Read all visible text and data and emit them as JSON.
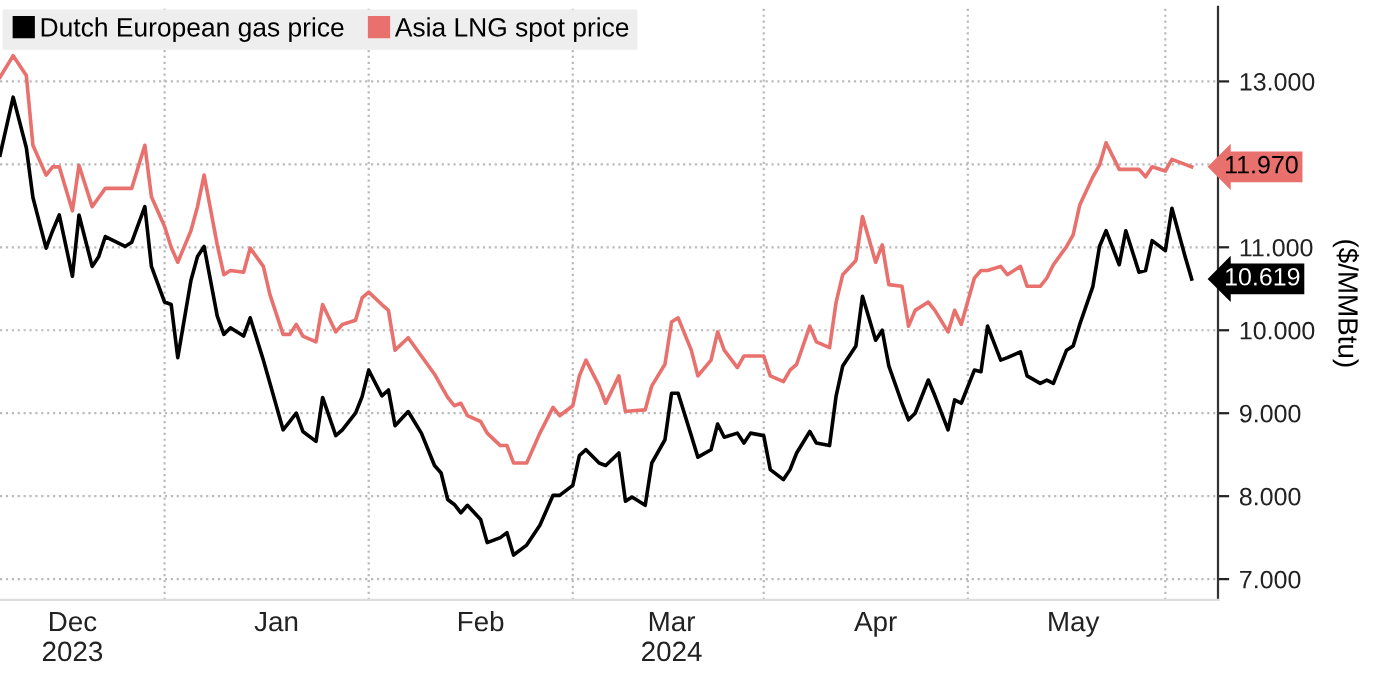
{
  "chart_data": {
    "type": "line",
    "ylabel": "($/MMBtu)",
    "legend": "top left",
    "grid": true,
    "line_style": "solid",
    "marker": "none",
    "x": [
      "2023-11-20",
      "2023-11-22",
      "2023-11-24",
      "2023-11-25",
      "2023-11-27",
      "2023-11-28",
      "2023-11-29",
      "2023-12-01",
      "2023-12-02",
      "2023-12-04",
      "2023-12-05",
      "2023-12-06",
      "2023-12-09",
      "2023-12-10",
      "2023-12-12",
      "2023-12-13",
      "2023-12-15",
      "2023-12-16",
      "2023-12-17",
      "2023-12-19",
      "2023-12-20",
      "2023-12-21",
      "2023-12-23",
      "2023-12-24",
      "2023-12-25",
      "2023-12-27",
      "2023-12-28",
      "2023-12-30",
      "2023-12-31",
      "2024-01-02",
      "2024-01-03",
      "2024-01-04",
      "2024-01-05",
      "2024-01-07",
      "2024-01-08",
      "2024-01-10",
      "2024-01-11",
      "2024-01-13",
      "2024-01-14",
      "2024-01-15",
      "2024-01-17",
      "2024-01-18",
      "2024-01-19",
      "2024-01-21",
      "2024-01-23",
      "2024-01-25",
      "2024-01-26",
      "2024-01-27",
      "2024-01-28",
      "2024-01-29",
      "2024-01-30",
      "2024-02-01",
      "2024-02-02",
      "2024-02-04",
      "2024-02-05",
      "2024-02-06",
      "2024-02-08",
      "2024-02-10",
      "2024-02-12",
      "2024-02-13",
      "2024-02-15",
      "2024-02-16",
      "2024-02-17",
      "2024-02-19",
      "2024-02-20",
      "2024-02-22",
      "2024-02-23",
      "2024-02-24",
      "2024-02-26",
      "2024-02-27",
      "2024-02-29",
      "2024-03-01",
      "2024-03-02",
      "2024-03-04",
      "2024-03-05",
      "2024-03-07",
      "2024-03-08",
      "2024-03-09",
      "2024-03-11",
      "2024-03-12",
      "2024-03-13",
      "2024-03-15",
      "2024-03-16",
      "2024-03-18",
      "2024-03-19",
      "2024-03-20",
      "2024-03-22",
      "2024-03-23",
      "2024-03-25",
      "2024-03-26",
      "2024-03-27",
      "2024-03-29",
      "2024-03-30",
      "2024-04-01",
      "2024-04-02",
      "2024-04-03",
      "2024-04-05",
      "2024-04-06",
      "2024-04-07",
      "2024-04-09",
      "2024-04-10",
      "2024-04-12",
      "2024-04-13",
      "2024-04-14",
      "2024-04-16",
      "2024-04-17",
      "2024-04-18",
      "2024-04-20",
      "2024-04-21",
      "2024-04-23",
      "2024-04-24",
      "2024-04-26",
      "2024-04-27",
      "2024-04-28",
      "2024-04-30",
      "2024-05-01",
      "2024-05-02",
      "2024-05-04",
      "2024-05-05",
      "2024-05-06",
      "2024-05-08",
      "2024-05-09",
      "2024-05-11",
      "2024-05-12",
      "2024-05-13",
      "2024-05-15",
      "2024-05-16",
      "2024-05-18",
      "2024-05-19"
    ],
    "series": [
      {
        "name": "Dutch European gas price",
        "color": "#000000",
        "values": [
          12.11,
          12.81,
          12.2,
          11.6,
          10.99,
          11.2,
          11.39,
          10.65,
          11.39,
          10.77,
          10.89,
          11.13,
          11.01,
          11.06,
          11.49,
          10.77,
          10.34,
          10.31,
          9.67,
          10.6,
          10.89,
          11.01,
          10.17,
          9.95,
          10.03,
          9.93,
          10.15,
          9.64,
          9.36,
          8.8,
          8.9,
          9.0,
          8.78,
          8.66,
          9.19,
          8.73,
          8.8,
          9.0,
          9.2,
          9.52,
          9.21,
          9.28,
          8.85,
          9.02,
          8.76,
          8.37,
          8.28,
          7.96,
          7.9,
          7.8,
          7.89,
          7.72,
          7.44,
          7.5,
          7.56,
          7.29,
          7.41,
          7.65,
          8.01,
          8.01,
          8.13,
          8.49,
          8.56,
          8.4,
          8.37,
          8.52,
          7.94,
          7.99,
          7.89,
          8.4,
          8.68,
          9.24,
          9.24,
          8.73,
          8.47,
          8.56,
          8.87,
          8.71,
          8.76,
          8.64,
          8.76,
          8.73,
          8.32,
          8.2,
          8.32,
          8.52,
          8.78,
          8.64,
          8.61,
          9.21,
          9.57,
          9.81,
          10.41,
          9.88,
          10.0,
          9.57,
          9.12,
          8.92,
          9.0,
          9.4,
          9.21,
          8.8,
          9.16,
          9.12,
          9.52,
          9.5,
          10.05,
          9.64,
          9.67,
          9.74,
          9.45,
          9.36,
          9.4,
          9.36,
          9.76,
          9.81,
          10.07,
          10.53,
          11.01,
          11.2,
          10.79,
          11.2,
          10.7,
          10.72,
          11.08,
          10.96,
          11.47,
          10.89,
          10.619
        ],
        "value_labels": [
          null,
          null,
          null,
          null,
          null,
          null,
          null,
          null,
          null,
          null,
          null,
          null,
          null,
          null,
          null,
          null,
          null,
          null,
          null,
          null,
          null,
          null,
          null,
          null,
          null,
          null,
          null,
          null,
          null,
          null,
          null,
          null,
          null,
          null,
          null,
          null,
          null,
          null,
          null,
          null,
          null,
          null,
          null,
          null,
          null,
          null,
          null,
          null,
          null,
          null,
          null,
          null,
          null,
          null,
          null,
          null,
          null,
          null,
          null,
          null,
          null,
          null,
          null,
          null,
          null,
          null,
          null,
          null,
          null,
          null,
          null,
          null,
          null,
          null,
          null,
          null,
          null,
          null,
          null,
          null,
          null,
          null,
          null,
          null,
          null,
          null,
          null,
          null,
          null,
          null,
          null,
          null,
          null,
          null,
          null,
          null,
          null,
          null,
          null,
          null,
          null,
          null,
          null,
          null,
          null,
          null,
          null,
          null,
          null,
          null,
          null,
          null,
          null,
          null,
          null,
          null,
          null,
          null,
          null,
          null,
          null,
          null,
          null,
          null,
          null,
          null,
          null,
          null,
          "10.619"
        ]
      },
      {
        "name": "Asia LNG spot price",
        "color": "#e8716d",
        "values": [
          13.05,
          13.31,
          13.07,
          12.23,
          11.87,
          11.97,
          11.97,
          11.44,
          11.99,
          11.49,
          11.6,
          11.71,
          11.71,
          11.71,
          12.23,
          11.61,
          11.25,
          11.0,
          10.82,
          11.2,
          11.49,
          11.87,
          11.03,
          10.67,
          10.72,
          10.7,
          10.99,
          10.77,
          10.43,
          9.95,
          9.95,
          10.07,
          9.93,
          9.86,
          10.31,
          9.98,
          10.07,
          10.12,
          10.39,
          10.46,
          10.31,
          10.24,
          9.76,
          9.91,
          9.69,
          9.47,
          9.33,
          9.19,
          9.09,
          9.12,
          8.97,
          8.9,
          8.76,
          8.61,
          8.61,
          8.4,
          8.4,
          8.76,
          9.07,
          8.97,
          9.09,
          9.45,
          9.64,
          9.33,
          9.12,
          9.45,
          9.02,
          9.03,
          9.04,
          9.33,
          9.59,
          10.1,
          10.15,
          9.76,
          9.45,
          9.64,
          9.98,
          9.76,
          9.55,
          9.69,
          9.69,
          9.69,
          9.45,
          9.38,
          9.52,
          9.59,
          10.05,
          9.86,
          9.79,
          10.34,
          10.67,
          10.84,
          11.37,
          10.82,
          11.03,
          10.55,
          10.53,
          10.05,
          10.24,
          10.34,
          10.24,
          9.98,
          10.24,
          10.07,
          10.63,
          10.72,
          10.72,
          10.77,
          10.67,
          10.77,
          10.53,
          10.53,
          10.63,
          10.79,
          11.01,
          11.15,
          11.51,
          11.85,
          11.99,
          12.26,
          11.94,
          11.94,
          11.94,
          11.85,
          11.97,
          11.92,
          12.06,
          12.0,
          11.97
        ],
        "value_labels": [
          null,
          null,
          null,
          null,
          null,
          null,
          null,
          null,
          null,
          null,
          null,
          null,
          null,
          null,
          null,
          null,
          null,
          null,
          null,
          null,
          null,
          null,
          null,
          null,
          null,
          null,
          null,
          null,
          null,
          null,
          null,
          null,
          null,
          null,
          null,
          null,
          null,
          null,
          null,
          null,
          null,
          null,
          null,
          null,
          null,
          null,
          null,
          null,
          null,
          null,
          null,
          null,
          null,
          null,
          null,
          null,
          null,
          null,
          null,
          null,
          null,
          null,
          null,
          null,
          null,
          null,
          null,
          null,
          null,
          null,
          null,
          null,
          null,
          null,
          null,
          null,
          null,
          null,
          null,
          null,
          null,
          null,
          null,
          null,
          null,
          null,
          null,
          null,
          null,
          null,
          null,
          null,
          null,
          null,
          null,
          null,
          null,
          null,
          null,
          null,
          null,
          null,
          null,
          null,
          null,
          null,
          null,
          null,
          null,
          null,
          null,
          null,
          null,
          null,
          null,
          null,
          null,
          null,
          null,
          null,
          null,
          null,
          null,
          null,
          null,
          null,
          null,
          null,
          "11.970"
        ]
      }
    ],
    "xlim": [
      "2023-11-20",
      "2024-05-23"
    ],
    "xticks": [
      {
        "value": "2023-12-01",
        "label": "Dec\n2023"
      },
      {
        "value": "2023-12-15",
        "label": null
      },
      {
        "value": "2024-01-01",
        "label": "Jan"
      },
      {
        "value": "2024-01-15",
        "label": null
      },
      {
        "value": "2024-02-01",
        "label": "Feb"
      },
      {
        "value": "2024-02-15",
        "label": null
      },
      {
        "value": "2024-03-01",
        "label": "Mar\n2024"
      },
      {
        "value": "2024-03-15",
        "label": null
      },
      {
        "value": "2024-04-01",
        "label": "Apr"
      },
      {
        "value": "2024-04-15",
        "label": null
      },
      {
        "value": "2024-05-01",
        "label": "May"
      },
      {
        "value": "2024-05-15",
        "label": null
      }
    ],
    "ylim": [
      6.75,
      13.9
    ],
    "yticks": [
      {
        "value": 7,
        "label": "7.000"
      },
      {
        "value": 8,
        "label": "8.000"
      },
      {
        "value": 9,
        "label": "9.000"
      },
      {
        "value": 10,
        "label": "10.000"
      },
      {
        "value": 11,
        "label": "11.000"
      },
      {
        "value": 12,
        "label": null
      },
      {
        "value": 13,
        "label": "13.000"
      }
    ]
  }
}
